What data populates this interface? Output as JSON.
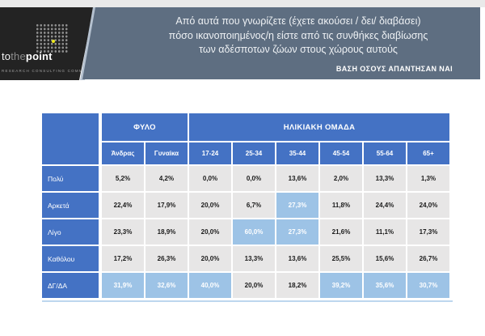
{
  "page": {
    "logo": {
      "brand_to": "to",
      "brand_the": "the",
      "brand_point": "point",
      "tagline": "RESEARCH CONSULTING COMMUNICATION"
    },
    "banner": {
      "question_lines": [
        "Από αυτά που γνωρίζετε (έχετε ακούσει / δει/ διαβάσει)",
        "πόσο ικανοποιημένος/η είστε από τις συνθήκες διαβίωσης",
        "των αδέσποτων ζώων στους χώρους αυτούς"
      ],
      "base_note": "ΒΑΣΗ ΟΣΟΥΣ ΑΠΑΝΤΗΣΑΝ ΝΑΙ"
    }
  },
  "chart_data": {
    "type": "table",
    "title": "Από αυτά που γνωρίζετε (έχετε ακούσει / δει/ διαβάσει) πόσο ικανοποιημένος/η είστε από τις συνθήκες διαβίωσης των αδέσποτων ζώων στους χώρους αυτούς",
    "base": "ΒΑΣΗ ΟΣΟΥΣ ΑΠΑΝΤΗΣΑΝ ΝΑΙ",
    "column_groups": [
      {
        "label": "ΦΥΛΟ",
        "span": 2
      },
      {
        "label": "ΗΛΙΚΙΑΚΗ ΟΜΑΔΑ",
        "span": 6
      }
    ],
    "columns": [
      "Άνδρας",
      "Γυναίκα",
      "17-24",
      "25-34",
      "35-44",
      "45-54",
      "55-64",
      "65+"
    ],
    "rows": [
      {
        "label": "Πολύ",
        "values": [
          "5,2%",
          "4,2%",
          "0,0%",
          "0,0%",
          "13,6%",
          "2,0%",
          "13,3%",
          "1,3%"
        ],
        "highlighted": [
          false,
          false,
          false,
          false,
          false,
          false,
          false,
          false
        ]
      },
      {
        "label": "Αρκετά",
        "values": [
          "22,4%",
          "17,9%",
          "20,0%",
          "6,7%",
          "27,3%",
          "11,8%",
          "24,4%",
          "24,0%"
        ],
        "highlighted": [
          false,
          false,
          false,
          false,
          true,
          false,
          false,
          false
        ]
      },
      {
        "label": "Λίγο",
        "values": [
          "23,3%",
          "18,9%",
          "20,0%",
          "60,0%",
          "27,3%",
          "21,6%",
          "11,1%",
          "17,3%"
        ],
        "highlighted": [
          false,
          false,
          false,
          true,
          true,
          false,
          false,
          false
        ]
      },
      {
        "label": "Καθόλου",
        "values": [
          "17,2%",
          "26,3%",
          "20,0%",
          "13,3%",
          "13,6%",
          "25,5%",
          "15,6%",
          "26,7%"
        ],
        "highlighted": [
          false,
          false,
          false,
          false,
          false,
          false,
          false,
          false
        ]
      },
      {
        "label": "ΔΓ/ΔΑ",
        "values": [
          "31,9%",
          "32,6%",
          "40,0%",
          "20,0%",
          "18,2%",
          "39,2%",
          "35,6%",
          "30,7%"
        ],
        "highlighted": [
          true,
          true,
          true,
          false,
          false,
          true,
          true,
          true
        ]
      }
    ],
    "colors": {
      "header_blue": "#4472C4",
      "highlight_blue": "#9DC3E6",
      "cell_gray": "#E7E6E6",
      "banner_bg": "#5E6E81",
      "accent_yellow": "#ECE71A"
    },
    "layout": {
      "legend_position": "none",
      "grid": "white 2px separators",
      "highlight_meaning": "notable value (light blue cell, white text)"
    }
  }
}
